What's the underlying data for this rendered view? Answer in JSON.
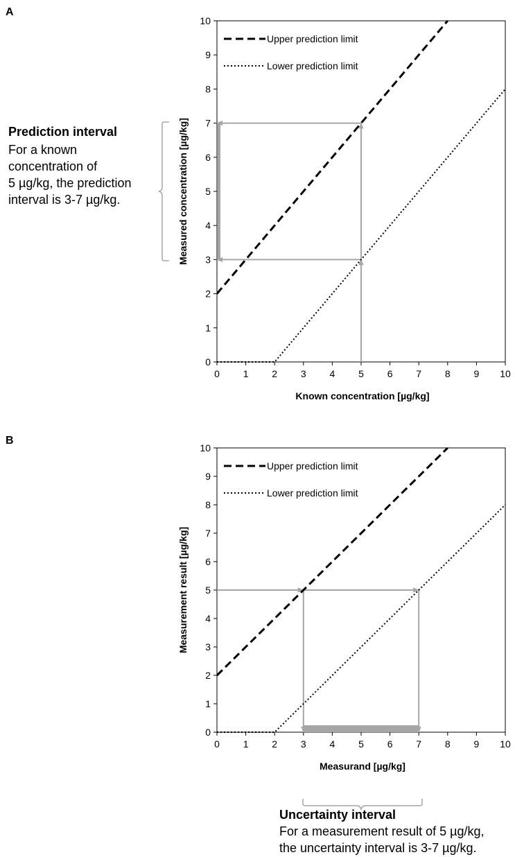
{
  "colors": {
    "line": "#000000",
    "arrow": "#a6a6a6",
    "axis": "#000000"
  },
  "chart_data": [
    {
      "panel": "A",
      "type": "line",
      "xlabel": "Known concentration [µg/kg]",
      "ylabel": "Measured concentration [µg/kg]",
      "xlim": [
        0,
        10
      ],
      "ylim": [
        0,
        10
      ],
      "xticks": [
        "0",
        "1",
        "2",
        "3",
        "4",
        "5",
        "6",
        "7",
        "8",
        "9",
        "10"
      ],
      "yticks": [
        "0",
        "1",
        "2",
        "3",
        "4",
        "5",
        "6",
        "7",
        "8",
        "9",
        "10"
      ],
      "legend_position": "top-left",
      "grid": false,
      "series": [
        {
          "name": "Upper prediction limit",
          "style": "dashed",
          "x": [
            0,
            8
          ],
          "y": [
            2,
            10
          ]
        },
        {
          "name": "Lower prediction limit",
          "style": "dotted",
          "x": [
            0,
            2,
            10
          ],
          "y": [
            0,
            0,
            8
          ]
        }
      ],
      "annotation": {
        "title": "Prediction interval",
        "lines": [
          "For a known",
          "concentration of",
          "5 µg/kg, the prediction",
          "interval is 3-7 µg/kg."
        ]
      },
      "arrows": [
        {
          "from": [
            5,
            0
          ],
          "to": [
            5,
            3
          ]
        },
        {
          "from": [
            5,
            3
          ],
          "to": [
            5,
            7
          ]
        },
        {
          "from": [
            5,
            7
          ],
          "to": [
            0,
            7
          ]
        },
        {
          "from": [
            5,
            3
          ],
          "to": [
            0,
            3
          ]
        }
      ],
      "highlight": {
        "axis": "y",
        "from": 3,
        "to": 7
      }
    },
    {
      "panel": "B",
      "type": "line",
      "xlabel": "Measurand [µg/kg]",
      "ylabel": "Measurement result [µg/kg]",
      "xlim": [
        0,
        10
      ],
      "ylim": [
        0,
        10
      ],
      "xticks": [
        "0",
        "1",
        "2",
        "3",
        "4",
        "5",
        "6",
        "7",
        "8",
        "9",
        "10"
      ],
      "yticks": [
        "0",
        "1",
        "2",
        "3",
        "4",
        "5",
        "6",
        "7",
        "8",
        "9",
        "10"
      ],
      "legend_position": "top-left",
      "grid": false,
      "series": [
        {
          "name": "Upper prediction limit",
          "style": "dashed",
          "x": [
            0,
            8
          ],
          "y": [
            2,
            10
          ]
        },
        {
          "name": "Lower prediction limit",
          "style": "dotted",
          "x": [
            0,
            2,
            10
          ],
          "y": [
            0,
            0,
            8
          ]
        }
      ],
      "annotation": {
        "title": "Uncertainty interval",
        "lines": [
          "For a measurement result of 5 µg/kg,",
          "the uncertainty interval is 3-7 µg/kg."
        ]
      },
      "arrows": [
        {
          "from": [
            0,
            5
          ],
          "to": [
            3,
            5
          ]
        },
        {
          "from": [
            3,
            5
          ],
          "to": [
            7,
            5
          ]
        },
        {
          "from": [
            3,
            5
          ],
          "to": [
            3,
            0
          ]
        },
        {
          "from": [
            7,
            5
          ],
          "to": [
            7,
            0
          ]
        }
      ],
      "highlight": {
        "axis": "x",
        "from": 3,
        "to": 7
      }
    }
  ]
}
